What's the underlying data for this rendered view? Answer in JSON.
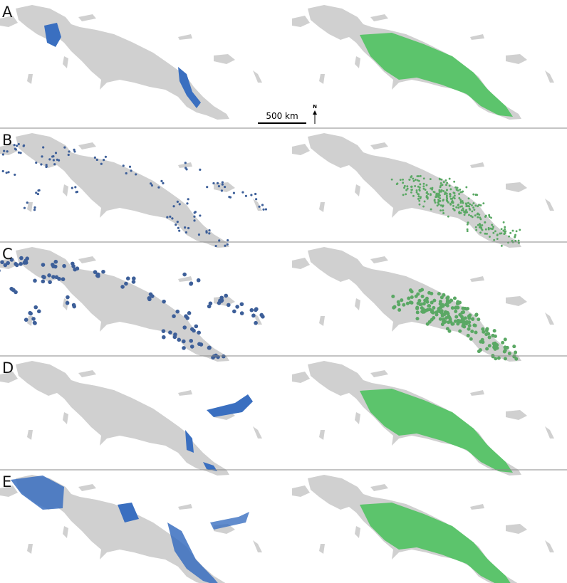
{
  "panels": [
    {
      "label": "A"
    },
    {
      "label": "B"
    },
    {
      "label": "C"
    },
    {
      "label": "D"
    },
    {
      "label": "E"
    }
  ],
  "scale_bar": {
    "label": "500 km"
  },
  "north_arrow": {
    "label": "N"
  }
}
